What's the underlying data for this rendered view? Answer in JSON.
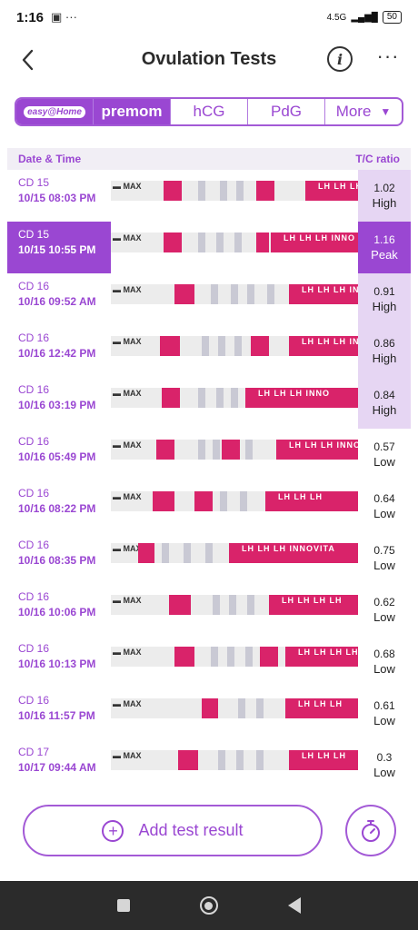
{
  "status_bar": {
    "time": "1:16",
    "left_icons": "▣ ···",
    "network": "4.5G",
    "signal": "▂▄▆█",
    "battery": "50"
  },
  "header": {
    "title": "Ovulation Tests"
  },
  "tabs": [
    {
      "label": "easy@Home"
    },
    {
      "label": "premom"
    },
    {
      "label": "hCG"
    },
    {
      "label": "PdG"
    },
    {
      "label": "More"
    }
  ],
  "table": {
    "col_date": "Date & Time",
    "col_ratio": "T/C ratio",
    "rows": [
      {
        "cd": "CD 15",
        "datetime": "10/15   08:03 PM",
        "ratio": "1.02",
        "level": "High",
        "strip_text": "LH LH LH INNO"
      },
      {
        "cd": "CD 15",
        "datetime": "10/15   10:55 PM",
        "ratio": "1.16",
        "level": "Peak",
        "strip_text": "LH LH LH INNO"
      },
      {
        "cd": "CD 16",
        "datetime": "10/16   09:52 AM",
        "ratio": "0.91",
        "level": "High",
        "strip_text": "LH LH LH INNO"
      },
      {
        "cd": "CD 16",
        "datetime": "10/16   12:42 PM",
        "ratio": "0.86",
        "level": "High",
        "strip_text": "LH LH LH INNO"
      },
      {
        "cd": "CD 16",
        "datetime": "10/16   03:19 PM",
        "ratio": "0.84",
        "level": "High",
        "strip_text": "LH LH LH INNO"
      },
      {
        "cd": "CD 16",
        "datetime": "10/16   05:49 PM",
        "ratio": "0.57",
        "level": "Low",
        "strip_text": "LH LH LH INNO"
      },
      {
        "cd": "CD 16",
        "datetime": "10/16   08:22 PM",
        "ratio": "0.64",
        "level": "Low",
        "strip_text": "LH LH LH"
      },
      {
        "cd": "CD 16",
        "datetime": "10/16   08:35 PM",
        "ratio": "0.75",
        "level": "Low",
        "strip_text": "LH LH LH INNOVITA"
      },
      {
        "cd": "CD 16",
        "datetime": "10/16   10:06 PM",
        "ratio": "0.62",
        "level": "Low",
        "strip_text": "LH LH LH LH"
      },
      {
        "cd": "CD 16",
        "datetime": "10/16   10:13 PM",
        "ratio": "0.68",
        "level": "Low",
        "strip_text": "LH LH LH LH"
      },
      {
        "cd": "CD 16",
        "datetime": "10/16   11:57 PM",
        "ratio": "0.61",
        "level": "Low",
        "strip_text": "LH LH LH"
      },
      {
        "cd": "CD 17",
        "datetime": "10/17   09:44 AM",
        "ratio": "0.3",
        "level": "Low",
        "strip_text": "LH LH LH"
      }
    ]
  },
  "actions": {
    "add_label": "Add test result"
  },
  "colors": {
    "accent": "#9a47d2",
    "high_bg": "#e6d6f3",
    "strip_pink": "#d9236a"
  },
  "icons": {
    "back": "chevron-left-icon",
    "info": "info-icon",
    "more": "more-dots-icon",
    "timer": "stopwatch-icon"
  }
}
